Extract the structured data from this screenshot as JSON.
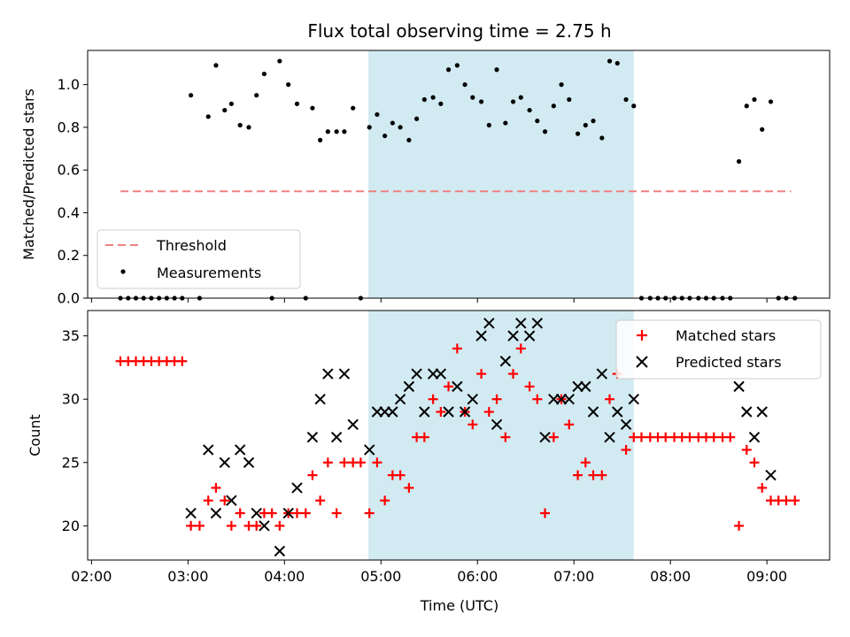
{
  "chart_data": {
    "title": "Flux total observing time = 2.75 h",
    "xlabel": "Time (UTC)",
    "x_ticks": [
      "02:00",
      "03:00",
      "04:00",
      "05:00",
      "06:00",
      "07:00",
      "08:00",
      "09:00"
    ],
    "x_range_hours": [
      1.96,
      9.65
    ],
    "highlight_span_hours": [
      4.87,
      7.62
    ],
    "highlight_color": "#add8e6",
    "panels": [
      {
        "type": "scatter",
        "ylabel": "Matched/Predicted stars",
        "ylim": [
          0,
          1.16
        ],
        "yticks": [
          "0.0",
          "0.2",
          "0.4",
          "0.6",
          "0.8",
          "1.0"
        ],
        "threshold": {
          "name": "Threshold",
          "value": 0.5,
          "x_range_hours": [
            2.3,
            9.25
          ],
          "color": "#f08080"
        },
        "series": [
          {
            "name": "Measurements",
            "color": "#000000",
            "points": [
              [
                2.3,
                0
              ],
              [
                2.38,
                0
              ],
              [
                2.46,
                0
              ],
              [
                2.54,
                0
              ],
              [
                2.62,
                0
              ],
              [
                2.7,
                0
              ],
              [
                2.78,
                0
              ],
              [
                2.86,
                0
              ],
              [
                2.94,
                0
              ],
              [
                3.03,
                0.95
              ],
              [
                3.12,
                0
              ],
              [
                3.21,
                0.85
              ],
              [
                3.29,
                1.09
              ],
              [
                3.38,
                0.88
              ],
              [
                3.45,
                0.91
              ],
              [
                3.54,
                0.81
              ],
              [
                3.63,
                0.8
              ],
              [
                3.71,
                0.95
              ],
              [
                3.79,
                1.05
              ],
              [
                3.87,
                0
              ],
              [
                3.95,
                1.11
              ],
              [
                4.04,
                1.0
              ],
              [
                4.13,
                0.91
              ],
              [
                4.22,
                0
              ],
              [
                4.29,
                0.89
              ],
              [
                4.37,
                0.74
              ],
              [
                4.45,
                0.78
              ],
              [
                4.54,
                0.78
              ],
              [
                4.62,
                0.78
              ],
              [
                4.71,
                0.89
              ],
              [
                4.79,
                0
              ],
              [
                4.88,
                0.8
              ],
              [
                4.96,
                0.86
              ],
              [
                5.04,
                0.76
              ],
              [
                5.12,
                0.82
              ],
              [
                5.2,
                0.8
              ],
              [
                5.29,
                0.74
              ],
              [
                5.37,
                0.84
              ],
              [
                5.45,
                0.93
              ],
              [
                5.54,
                0.94
              ],
              [
                5.62,
                0.91
              ],
              [
                5.7,
                1.07
              ],
              [
                5.79,
                1.09
              ],
              [
                5.87,
                1.0
              ],
              [
                5.95,
                0.94
              ],
              [
                6.04,
                0.92
              ],
              [
                6.12,
                0.81
              ],
              [
                6.2,
                1.07
              ],
              [
                6.29,
                0.82
              ],
              [
                6.37,
                0.92
              ],
              [
                6.45,
                0.94
              ],
              [
                6.54,
                0.88
              ],
              [
                6.62,
                0.83
              ],
              [
                6.7,
                0.78
              ],
              [
                6.79,
                0.9
              ],
              [
                6.87,
                1.0
              ],
              [
                6.95,
                0.93
              ],
              [
                7.04,
                0.77
              ],
              [
                7.12,
                0.81
              ],
              [
                7.2,
                0.83
              ],
              [
                7.29,
                0.75
              ],
              [
                7.37,
                1.11
              ],
              [
                7.45,
                1.1
              ],
              [
                7.54,
                0.93
              ],
              [
                7.62,
                0.9
              ],
              [
                7.7,
                0
              ],
              [
                7.79,
                0
              ],
              [
                7.87,
                0
              ],
              [
                7.95,
                0
              ],
              [
                8.04,
                0
              ],
              [
                8.12,
                0
              ],
              [
                8.2,
                0
              ],
              [
                8.29,
                0
              ],
              [
                8.37,
                0
              ],
              [
                8.45,
                0
              ],
              [
                8.54,
                0
              ],
              [
                8.62,
                0
              ],
              [
                8.71,
                0.64
              ],
              [
                8.79,
                0.9
              ],
              [
                8.87,
                0.93
              ],
              [
                8.95,
                0.79
              ],
              [
                9.04,
                0.92
              ],
              [
                9.12,
                0
              ],
              [
                9.2,
                0
              ],
              [
                9.29,
                0
              ]
            ]
          }
        ]
      },
      {
        "type": "scatter",
        "ylabel": "Count",
        "ylim": [
          17.3,
          37
        ],
        "yticks": [
          "20",
          "25",
          "30",
          "35"
        ],
        "series": [
          {
            "name": "Matched stars",
            "marker": "plus",
            "color": "#ff0000",
            "points": [
              [
                2.3,
                33
              ],
              [
                2.38,
                33
              ],
              [
                2.46,
                33
              ],
              [
                2.54,
                33
              ],
              [
                2.62,
                33
              ],
              [
                2.7,
                33
              ],
              [
                2.78,
                33
              ],
              [
                2.86,
                33
              ],
              [
                2.94,
                33
              ],
              [
                3.03,
                20
              ],
              [
                3.12,
                20
              ],
              [
                3.21,
                22
              ],
              [
                3.29,
                23
              ],
              [
                3.38,
                22
              ],
              [
                3.45,
                20
              ],
              [
                3.54,
                21
              ],
              [
                3.63,
                20
              ],
              [
                3.71,
                20
              ],
              [
                3.79,
                21
              ],
              [
                3.87,
                21
              ],
              [
                3.95,
                20
              ],
              [
                4.04,
                21
              ],
              [
                4.13,
                21
              ],
              [
                4.22,
                21
              ],
              [
                4.29,
                24
              ],
              [
                4.37,
                22
              ],
              [
                4.45,
                25
              ],
              [
                4.54,
                21
              ],
              [
                4.62,
                25
              ],
              [
                4.71,
                25
              ],
              [
                4.79,
                25
              ],
              [
                4.88,
                21
              ],
              [
                4.96,
                25
              ],
              [
                5.04,
                22
              ],
              [
                5.12,
                24
              ],
              [
                5.2,
                24
              ],
              [
                5.29,
                23
              ],
              [
                5.37,
                27
              ],
              [
                5.45,
                27
              ],
              [
                5.54,
                30
              ],
              [
                5.62,
                29
              ],
              [
                5.7,
                31
              ],
              [
                5.79,
                34
              ],
              [
                5.87,
                29
              ],
              [
                5.95,
                28
              ],
              [
                6.04,
                32
              ],
              [
                6.12,
                29
              ],
              [
                6.2,
                30
              ],
              [
                6.29,
                27
              ],
              [
                6.37,
                32
              ],
              [
                6.45,
                34
              ],
              [
                6.54,
                31
              ],
              [
                6.62,
                30
              ],
              [
                6.7,
                21
              ],
              [
                6.79,
                27
              ],
              [
                6.87,
                30
              ],
              [
                6.95,
                28
              ],
              [
                7.04,
                24
              ],
              [
                7.12,
                25
              ],
              [
                7.2,
                24
              ],
              [
                7.29,
                24
              ],
              [
                7.37,
                30
              ],
              [
                7.45,
                32
              ],
              [
                7.54,
                26
              ],
              [
                7.62,
                27
              ],
              [
                7.7,
                27
              ],
              [
                7.79,
                27
              ],
              [
                7.87,
                27
              ],
              [
                7.95,
                27
              ],
              [
                8.04,
                27
              ],
              [
                8.12,
                27
              ],
              [
                8.2,
                27
              ],
              [
                8.29,
                27
              ],
              [
                8.37,
                27
              ],
              [
                8.45,
                27
              ],
              [
                8.54,
                27
              ],
              [
                8.62,
                27
              ],
              [
                8.71,
                20
              ],
              [
                8.79,
                26
              ],
              [
                8.87,
                25
              ],
              [
                8.95,
                23
              ],
              [
                9.04,
                22
              ],
              [
                9.12,
                22
              ],
              [
                9.2,
                22
              ],
              [
                9.29,
                22
              ]
            ]
          },
          {
            "name": "Predicted stars",
            "marker": "x",
            "color": "#000000",
            "points": [
              [
                3.03,
                21
              ],
              [
                3.21,
                26
              ],
              [
                3.29,
                21
              ],
              [
                3.38,
                25
              ],
              [
                3.45,
                22
              ],
              [
                3.54,
                26
              ],
              [
                3.63,
                25
              ],
              [
                3.71,
                21
              ],
              [
                3.79,
                20
              ],
              [
                3.95,
                18
              ],
              [
                4.04,
                21
              ],
              [
                4.13,
                23
              ],
              [
                4.29,
                27
              ],
              [
                4.37,
                30
              ],
              [
                4.45,
                32
              ],
              [
                4.54,
                27
              ],
              [
                4.62,
                32
              ],
              [
                4.71,
                28
              ],
              [
                4.88,
                26
              ],
              [
                4.96,
                29
              ],
              [
                5.04,
                29
              ],
              [
                5.12,
                29
              ],
              [
                5.2,
                30
              ],
              [
                5.29,
                31
              ],
              [
                5.37,
                32
              ],
              [
                5.45,
                29
              ],
              [
                5.54,
                32
              ],
              [
                5.62,
                32
              ],
              [
                5.7,
                29
              ],
              [
                5.79,
                31
              ],
              [
                5.87,
                29
              ],
              [
                5.95,
                30
              ],
              [
                6.04,
                35
              ],
              [
                6.12,
                36
              ],
              [
                6.2,
                28
              ],
              [
                6.29,
                33
              ],
              [
                6.37,
                35
              ],
              [
                6.45,
                36
              ],
              [
                6.54,
                35
              ],
              [
                6.62,
                36
              ],
              [
                6.7,
                27
              ],
              [
                6.79,
                30
              ],
              [
                6.87,
                30
              ],
              [
                6.95,
                30
              ],
              [
                7.04,
                31
              ],
              [
                7.12,
                31
              ],
              [
                7.2,
                29
              ],
              [
                7.29,
                32
              ],
              [
                7.37,
                27
              ],
              [
                7.45,
                29
              ],
              [
                7.54,
                28
              ],
              [
                7.62,
                30
              ],
              [
                8.71,
                31
              ],
              [
                8.79,
                29
              ],
              [
                8.87,
                27
              ],
              [
                8.95,
                29
              ],
              [
                9.04,
                24
              ]
            ]
          }
        ]
      }
    ]
  }
}
